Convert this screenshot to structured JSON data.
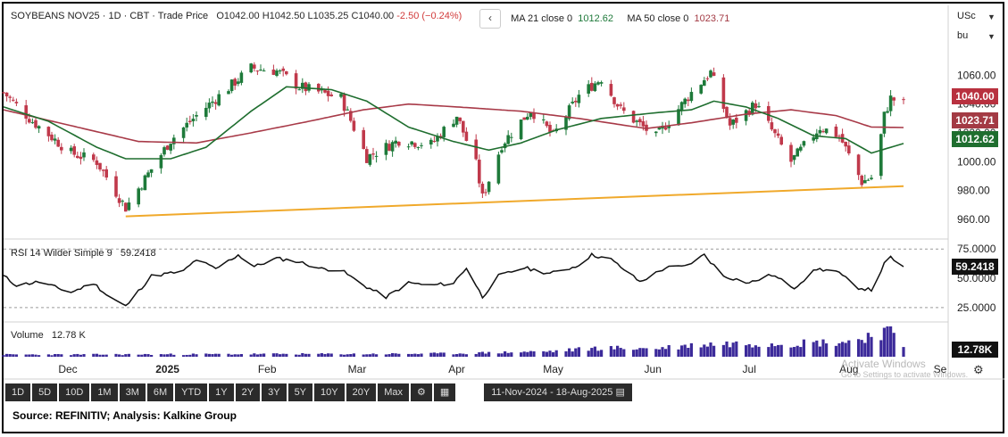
{
  "header": {
    "symbol": "SOYBEANS NOV25",
    "interval": "1D",
    "exchange": "CBT",
    "price_type": "Trade Price",
    "open": "O1042.00",
    "high": "H1042.50",
    "low": "L1035.25",
    "close": "C1040.00",
    "change": "-2.50 (−0.24%)",
    "collapse_glyph": "‹"
  },
  "ma": {
    "ma21_label": "MA 21 close 0",
    "ma21_value": "1012.62",
    "ma50_label": "MA 50 close 0",
    "ma50_value": "1023.71"
  },
  "rsi": {
    "label": "RSI 14 Wilder Simple 9",
    "value": "59.2418"
  },
  "volume": {
    "label": "Volume",
    "value": "12.78 K"
  },
  "price_labels": {
    "last": "1040.00",
    "ma50": "1023.71",
    "ma21": "1012.62",
    "rsi": "59.2418",
    "volume": "12.78K"
  },
  "axis_top": {
    "currency": "USc",
    "unit": "bu"
  },
  "watermark": {
    "line1": "Activate Windows",
    "line2": "Go to Settings to activate Windows."
  },
  "toolbar": {
    "timeframes": [
      "1D",
      "5D",
      "10D",
      "1M",
      "3M",
      "6M",
      "YTD",
      "1Y",
      "2Y",
      "3Y",
      "5Y",
      "10Y",
      "20Y",
      "Max"
    ],
    "date_range": "11-Nov-2024 - 18-Aug-2025"
  },
  "source": "Source: REFINITIV; Analysis: Kalkine Group",
  "colors": {
    "up": "#1e7a3a",
    "down": "#c0394b",
    "ma21": "#1f6e2f",
    "ma50": "#a83a48",
    "trendline": "#f0a92b",
    "volume": "#3c2a9a",
    "ma50_label_bg": "#a33a44",
    "ma21_label_bg": "#1f6e2f",
    "last_label_bg": "#b8313f",
    "dark_label_bg": "#111111"
  },
  "chart_data": [
    {
      "type": "candlestick",
      "title": "SOYBEANS NOV25",
      "x_labels": [
        "Dec",
        "2025",
        "Feb",
        "Mar",
        "Apr",
        "May",
        "Jun",
        "Jul",
        "Aug",
        "Se"
      ],
      "y_ticks": [
        960,
        980,
        1000,
        1020,
        1040,
        1060
      ],
      "y_range": [
        950,
        1085
      ],
      "x_range": [
        "2024-11-11",
        "2025-08-18"
      ],
      "series": [
        {
          "name": "MA 21 close 0",
          "last": 1012.62
        },
        {
          "name": "MA 50 close 0",
          "last": 1023.71
        }
      ],
      "close_keypoints": [
        [
          "2024-11-11",
          1048
        ],
        [
          "2024-11-20",
          1028
        ],
        [
          "2024-12-02",
          1006
        ],
        [
          "2024-12-10",
          1000
        ],
        [
          "2024-12-19",
          968
        ],
        [
          "2025-01-02",
          1015
        ],
        [
          "2025-01-10",
          1032
        ],
        [
          "2025-01-27",
          1065
        ],
        [
          "2025-02-04",
          1063
        ],
        [
          "2025-02-11",
          1052
        ],
        [
          "2025-02-24",
          1044
        ],
        [
          "2025-03-04",
          1003
        ],
        [
          "2025-03-14",
          1015
        ],
        [
          "2025-03-24",
          1012
        ],
        [
          "2025-04-01",
          1032
        ],
        [
          "2025-04-07",
          998
        ],
        [
          "2025-04-09",
          975
        ],
        [
          "2025-04-15",
          1012
        ],
        [
          "2025-04-24",
          1036
        ],
        [
          "2025-05-01",
          1018
        ],
        [
          "2025-05-09",
          1046
        ],
        [
          "2025-05-16",
          1058
        ],
        [
          "2025-05-22",
          1036
        ],
        [
          "2025-06-02",
          1017
        ],
        [
          "2025-06-13",
          1048
        ],
        [
          "2025-06-19",
          1062
        ],
        [
          "2025-06-25",
          1025
        ],
        [
          "2025-07-03",
          1040
        ],
        [
          "2025-07-14",
          1000
        ],
        [
          "2025-07-23",
          1024
        ],
        [
          "2025-07-29",
          1018
        ],
        [
          "2025-08-05",
          986
        ],
        [
          "2025-08-09",
          990
        ],
        [
          "2025-08-12",
          1032
        ],
        [
          "2025-08-14",
          1044
        ],
        [
          "2025-08-18",
          1040
        ]
      ],
      "trendline": {
        "start": [
          "2024-12-19",
          962
        ],
        "end": [
          "2025-08-18",
          983
        ]
      },
      "ma21_keypoints": [
        [
          "2024-11-11",
          1038
        ],
        [
          "2024-11-25",
          1028
        ],
        [
          "2024-12-10",
          1010
        ],
        [
          "2024-12-19",
          1002
        ],
        [
          "2025-01-02",
          1002
        ],
        [
          "2025-01-13",
          1010
        ],
        [
          "2025-01-27",
          1035
        ],
        [
          "2025-02-07",
          1052
        ],
        [
          "2025-02-21",
          1050
        ],
        [
          "2025-03-04",
          1042
        ],
        [
          "2025-03-17",
          1024
        ],
        [
          "2025-03-31",
          1014
        ],
        [
          "2025-04-11",
          1008
        ],
        [
          "2025-04-21",
          1013
        ],
        [
          "2025-05-02",
          1022
        ],
        [
          "2025-05-16",
          1030
        ],
        [
          "2025-06-02",
          1034
        ],
        [
          "2025-06-13",
          1036
        ],
        [
          "2025-06-20",
          1042
        ],
        [
          "2025-06-30",
          1038
        ],
        [
          "2025-07-10",
          1030
        ],
        [
          "2025-07-21",
          1018
        ],
        [
          "2025-07-31",
          1016
        ],
        [
          "2025-08-08",
          1006
        ],
        [
          "2025-08-18",
          1012.62
        ]
      ],
      "ma50_keypoints": [
        [
          "2024-11-11",
          1036
        ],
        [
          "2024-12-02",
          1025
        ],
        [
          "2024-12-23",
          1014
        ],
        [
          "2025-01-10",
          1013
        ],
        [
          "2025-01-27",
          1020
        ],
        [
          "2025-02-14",
          1028
        ],
        [
          "2025-03-03",
          1036
        ],
        [
          "2025-03-17",
          1040
        ],
        [
          "2025-04-01",
          1038
        ],
        [
          "2025-04-21",
          1035
        ],
        [
          "2025-05-09",
          1030
        ],
        [
          "2025-05-30",
          1023
        ],
        [
          "2025-06-13",
          1027
        ],
        [
          "2025-06-30",
          1033
        ],
        [
          "2025-07-14",
          1036
        ],
        [
          "2025-07-28",
          1032
        ],
        [
          "2025-08-08",
          1024
        ],
        [
          "2025-08-18",
          1023.71
        ]
      ]
    },
    {
      "type": "line",
      "title": "RSI 14 Wilder Simple 9",
      "y_ticks": [
        25,
        50,
        75
      ],
      "y_range": [
        15,
        82
      ],
      "series": [
        {
          "name": "RSI 14 Wilder Simple 9",
          "last": 59.2418
        }
      ],
      "keypoints": [
        [
          "2024-11-11",
          52
        ],
        [
          "2024-11-15",
          44
        ],
        [
          "2024-11-22",
          47
        ],
        [
          "2024-12-02",
          38
        ],
        [
          "2024-12-09",
          46
        ],
        [
          "2024-12-13",
          36
        ],
        [
          "2024-12-19",
          26
        ],
        [
          "2024-12-27",
          52
        ],
        [
          "2025-01-06",
          56
        ],
        [
          "2025-01-10",
          66
        ],
        [
          "2025-01-16",
          58
        ],
        [
          "2025-01-23",
          70
        ],
        [
          "2025-01-28",
          60
        ],
        [
          "2025-02-04",
          67
        ],
        [
          "2025-02-11",
          64
        ],
        [
          "2025-02-18",
          58
        ],
        [
          "2025-02-24",
          57
        ],
        [
          "2025-03-03",
          44
        ],
        [
          "2025-03-10",
          34
        ],
        [
          "2025-03-17",
          46
        ],
        [
          "2025-03-24",
          44
        ],
        [
          "2025-03-31",
          46
        ],
        [
          "2025-04-04",
          59
        ],
        [
          "2025-04-09",
          34
        ],
        [
          "2025-04-14",
          52
        ],
        [
          "2025-04-22",
          59
        ],
        [
          "2025-04-30",
          54
        ],
        [
          "2025-05-08",
          60
        ],
        [
          "2025-05-13",
          70
        ],
        [
          "2025-05-19",
          66
        ],
        [
          "2025-05-28",
          47
        ],
        [
          "2025-06-05",
          59
        ],
        [
          "2025-06-11",
          60
        ],
        [
          "2025-06-17",
          70
        ],
        [
          "2025-06-23",
          52
        ],
        [
          "2025-07-01",
          46
        ],
        [
          "2025-07-08",
          53
        ],
        [
          "2025-07-15",
          42
        ],
        [
          "2025-07-22",
          58
        ],
        [
          "2025-07-28",
          56
        ],
        [
          "2025-08-04",
          42
        ],
        [
          "2025-08-08",
          40
        ],
        [
          "2025-08-12",
          62
        ],
        [
          "2025-08-14",
          68
        ],
        [
          "2025-08-18",
          59.24
        ]
      ]
    },
    {
      "type": "bar",
      "title": "Volume",
      "series": [
        {
          "name": "Volume",
          "last": "12.78 K"
        }
      ],
      "relative_keypoints": [
        [
          "2024-11-11",
          0.08
        ],
        [
          "2024-12-02",
          0.08
        ],
        [
          "2025-01-06",
          0.09
        ],
        [
          "2025-02-03",
          0.1
        ],
        [
          "2025-03-03",
          0.1
        ],
        [
          "2025-04-01",
          0.12
        ],
        [
          "2025-05-01",
          0.2
        ],
        [
          "2025-05-15",
          0.32
        ],
        [
          "2025-06-02",
          0.3
        ],
        [
          "2025-06-16",
          0.45
        ],
        [
          "2025-07-01",
          0.5
        ],
        [
          "2025-07-15",
          0.5
        ],
        [
          "2025-08-01",
          0.55
        ],
        [
          "2025-08-11",
          0.9
        ],
        [
          "2025-08-13",
          1.0
        ],
        [
          "2025-08-18",
          0.4
        ]
      ]
    }
  ]
}
